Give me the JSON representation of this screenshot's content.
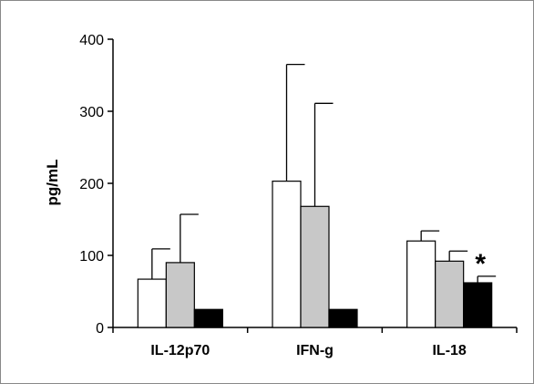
{
  "chart_data": {
    "type": "bar",
    "title": "",
    "xlabel": "",
    "ylabel": "pg/mL",
    "ylim": [
      0,
      400
    ],
    "yticks": [
      0,
      100,
      200,
      300,
      400
    ],
    "grid": false,
    "legend": "none",
    "categories": [
      "IL-12p70",
      "IFN-g",
      "IL-18"
    ],
    "series": [
      {
        "color": "#ffffff",
        "values": [
          67,
          203,
          120
        ],
        "errors": [
          42,
          162,
          14
        ]
      },
      {
        "color": "#c8c8c8",
        "values": [
          90,
          168,
          92
        ],
        "errors": [
          67,
          143,
          14
        ]
      },
      {
        "color": "#000000",
        "values": [
          25,
          25,
          62
        ],
        "errors": [
          0,
          0,
          9
        ]
      }
    ],
    "annotations": [
      {
        "text": "*",
        "category": "IL-18",
        "series_index": 2
      }
    ]
  }
}
